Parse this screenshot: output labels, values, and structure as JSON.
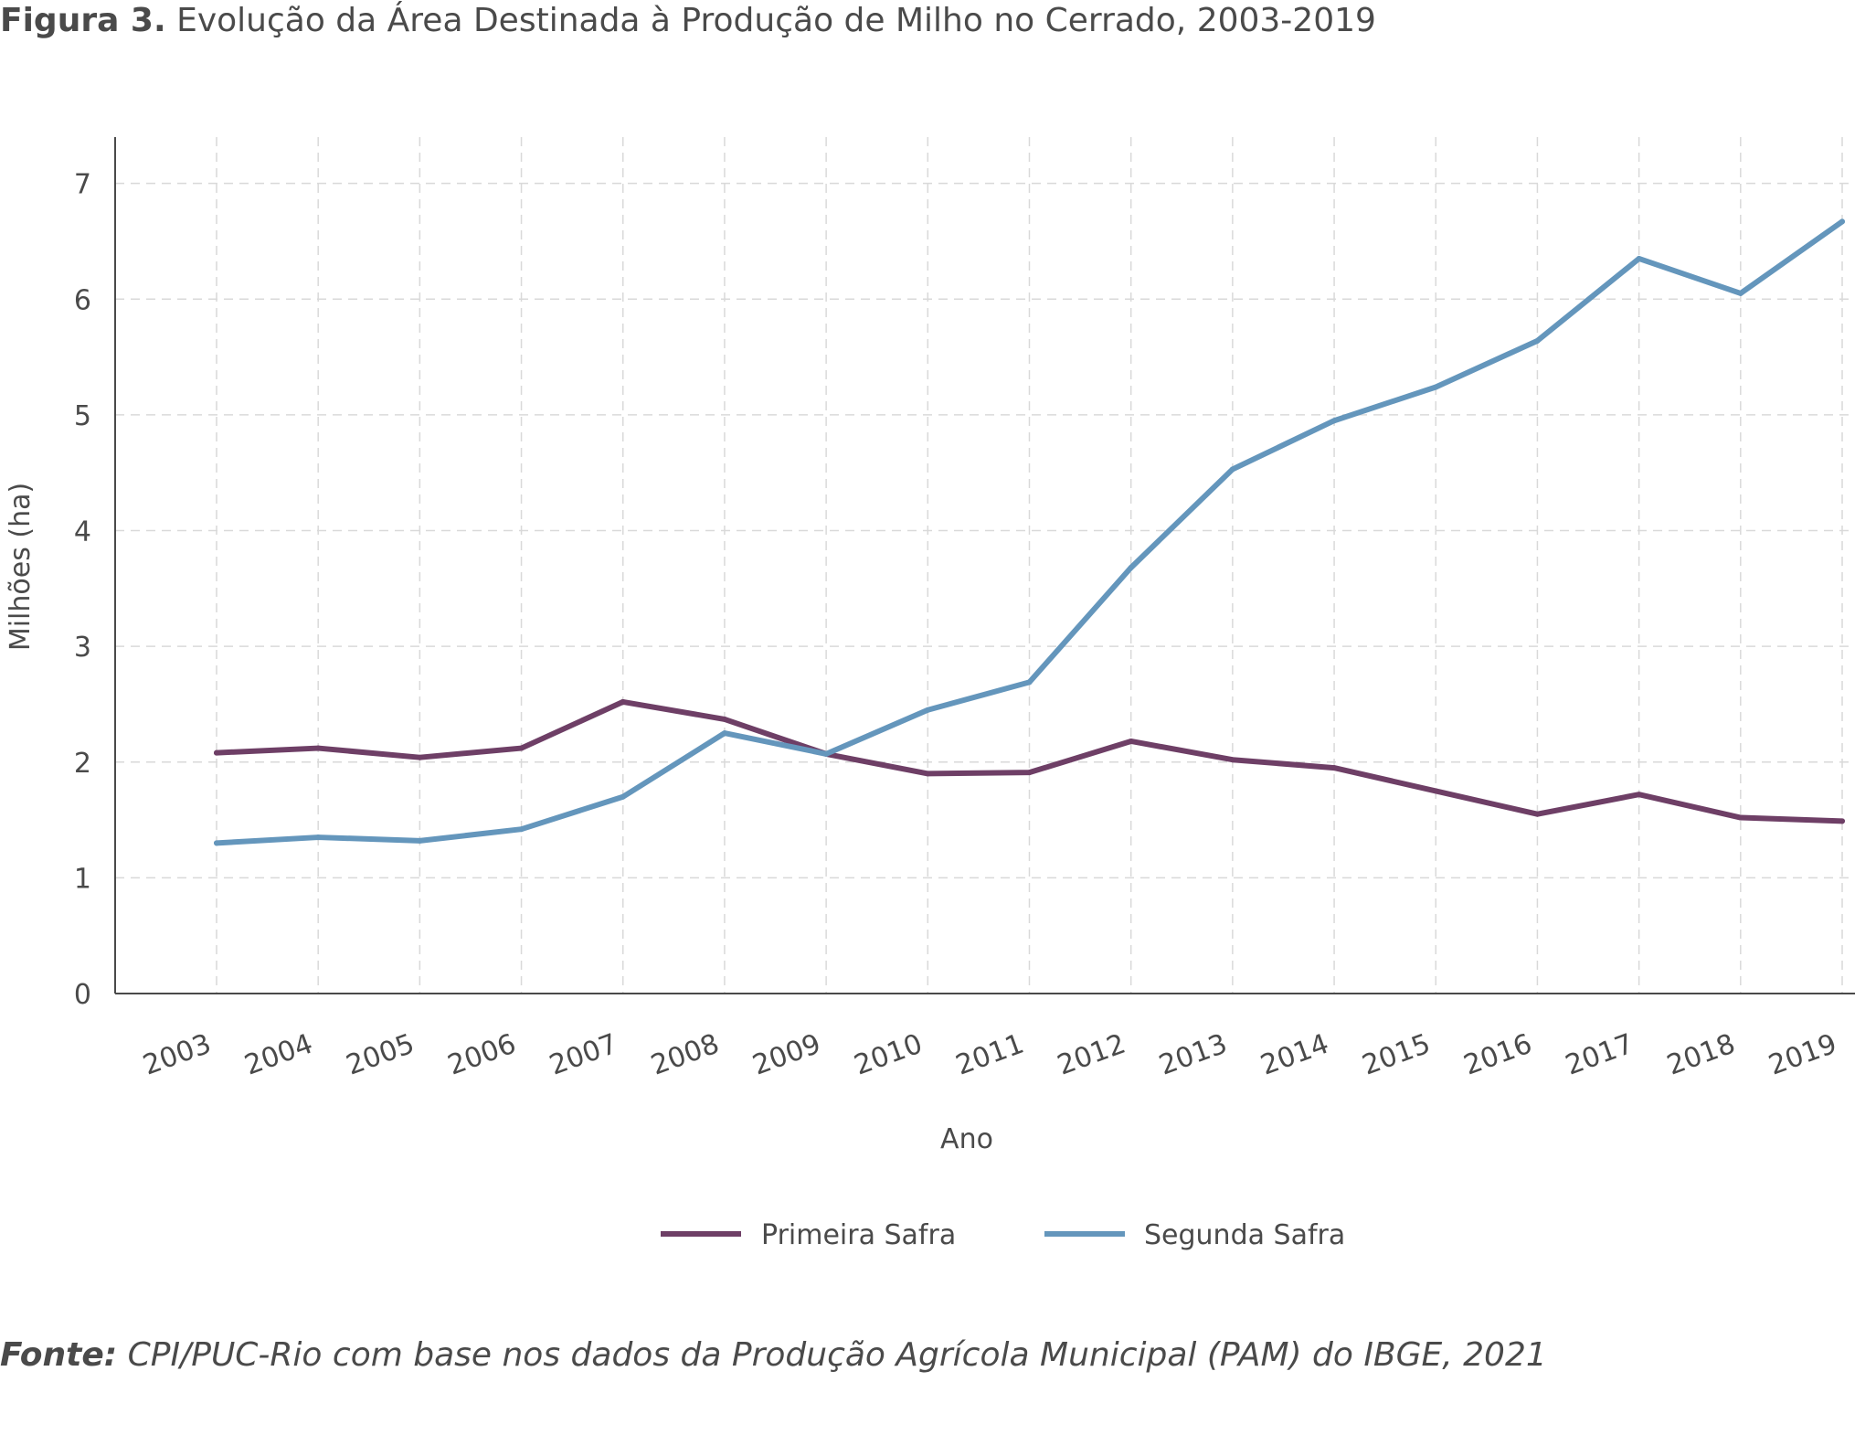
{
  "figure": {
    "label": "Figura 3.",
    "title": "Evolução da Área Destinada à Produção de Milho no Cerrado, 2003-2019"
  },
  "source": {
    "label": "Fonte:",
    "text": "CPI/PUC-Rio com base nos dados da Produção Agrícola Municipal (PAM) do IBGE, 2021"
  },
  "chart_data": {
    "type": "line",
    "title": "Evolução da Área Destinada à Produção de Milho no Cerrado, 2003-2019",
    "xlabel": "Ano",
    "ylabel": "Milhões (ha)",
    "ylim": [
      0,
      7.4
    ],
    "yticks": [
      0,
      1,
      2,
      3,
      4,
      5,
      6,
      7
    ],
    "grid": true,
    "legend_position": "bottom-center",
    "x": [
      "2003",
      "2004",
      "2005",
      "2006",
      "2007",
      "2008",
      "2009",
      "2010",
      "2011",
      "2012",
      "2013",
      "2014",
      "2015",
      "2016",
      "2017",
      "2018",
      "2019"
    ],
    "series": [
      {
        "name": "Primeira Safra",
        "color": "#6e3f66",
        "values": [
          2.08,
          2.12,
          2.04,
          2.12,
          2.52,
          2.37,
          2.07,
          1.9,
          1.91,
          2.18,
          2.02,
          1.95,
          1.75,
          1.55,
          1.72,
          1.52,
          1.49
        ]
      },
      {
        "name": "Segunda Safra",
        "color": "#6496bc",
        "values": [
          1.3,
          1.35,
          1.32,
          1.42,
          1.7,
          2.25,
          2.07,
          2.45,
          2.69,
          3.68,
          4.53,
          4.95,
          5.24,
          5.64,
          6.35,
          6.05,
          6.67
        ]
      }
    ]
  }
}
